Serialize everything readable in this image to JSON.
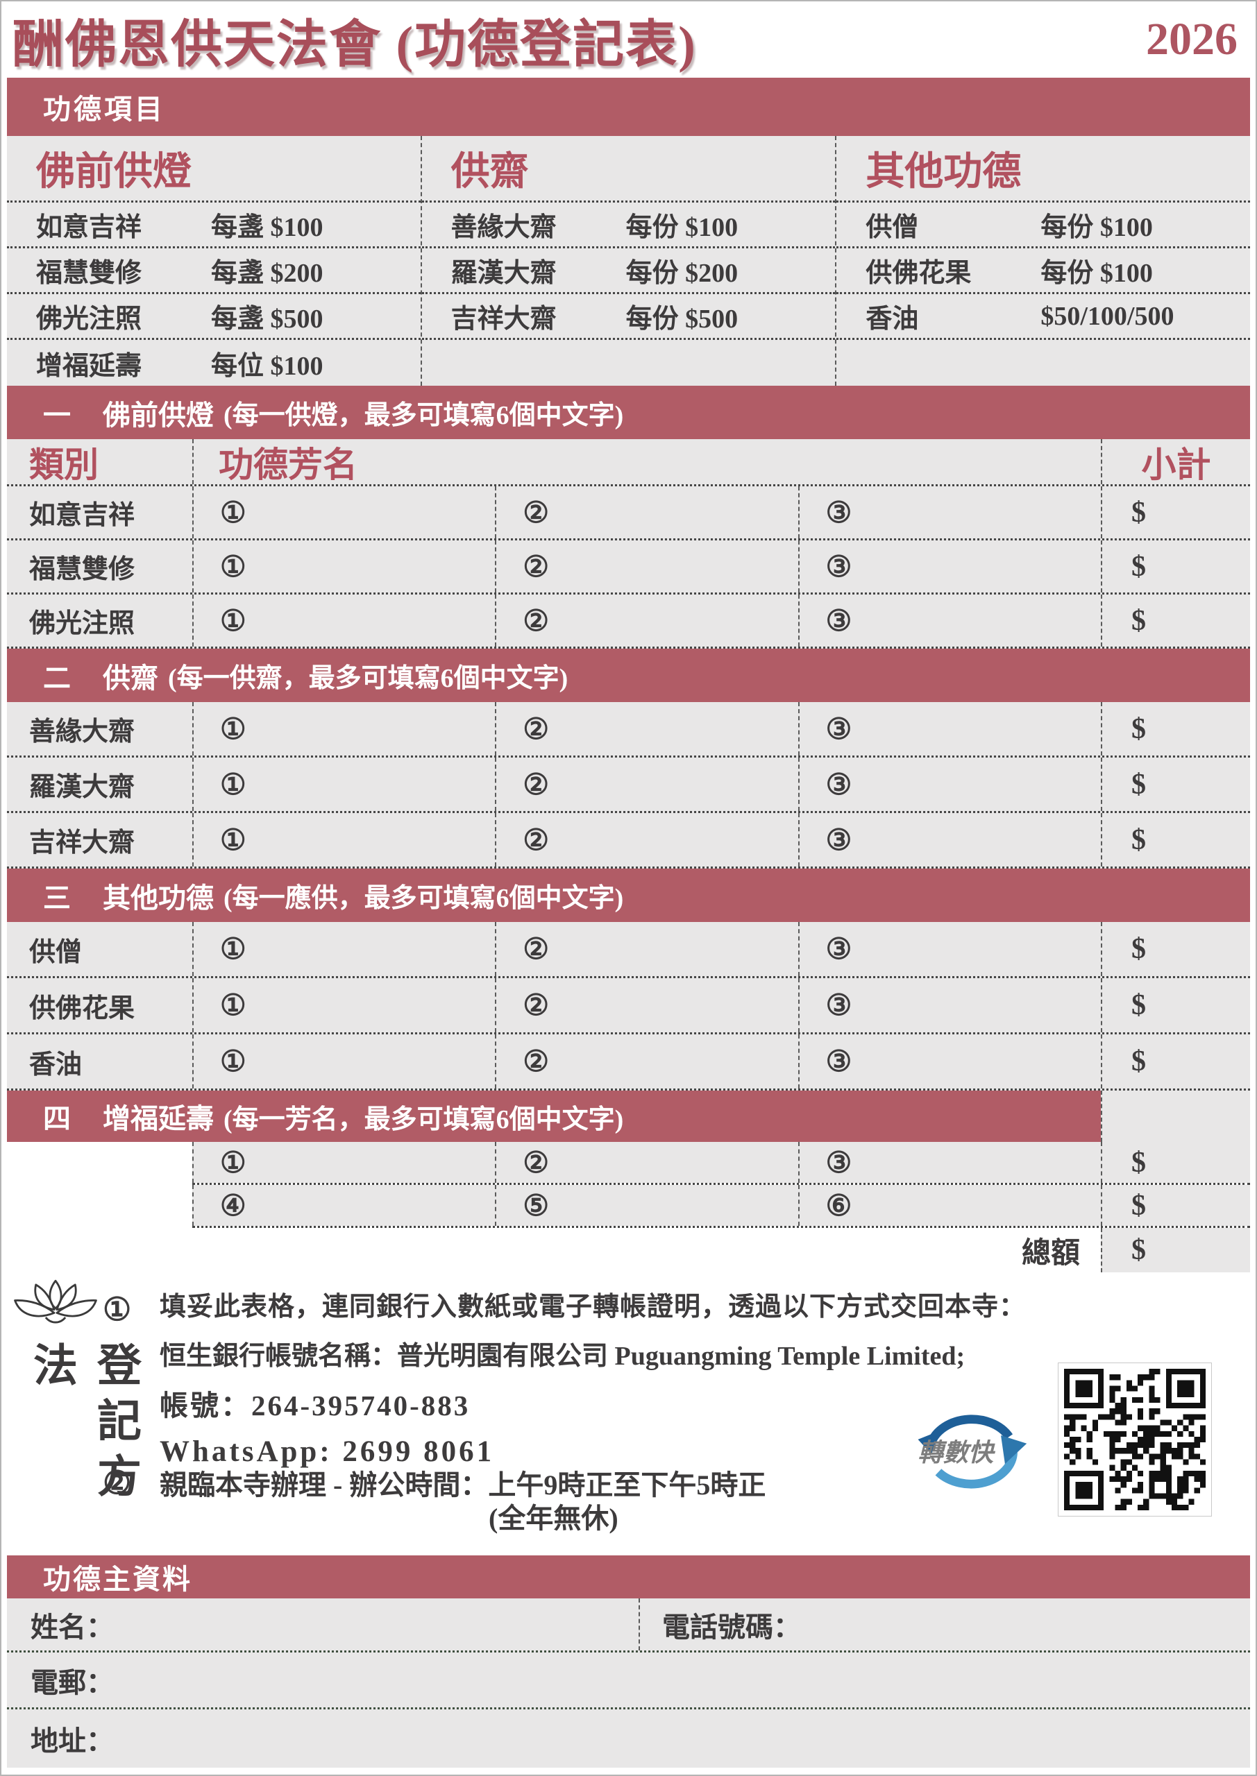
{
  "header": {
    "title": "酬佛恩供天法會 (功德登記表)",
    "year": "2026"
  },
  "colors": {
    "band_red": "#b15c66",
    "title_red": "#a84e5a",
    "accent_red": "#b1515f",
    "panel_gray": "#e8e7e7"
  },
  "merit_items": {
    "band_label": "功德項目",
    "columns": [
      {
        "title": "佛前供燈",
        "items": [
          {
            "name": "如意吉祥",
            "price": "每盞 $100"
          },
          {
            "name": "福慧雙修",
            "price": "每盞 $200"
          },
          {
            "name": "佛光注照",
            "price": "每盞 $500"
          },
          {
            "name": "增福延壽",
            "price": "每位 $100"
          }
        ]
      },
      {
        "title": "供齋",
        "items": [
          {
            "name": "善緣大齋",
            "price": "每份 $100"
          },
          {
            "name": "羅漢大齋",
            "price": "每份 $200"
          },
          {
            "name": "吉祥大齋",
            "price": "每份 $500"
          }
        ]
      },
      {
        "title": "其他功德",
        "items": [
          {
            "name": "供僧",
            "price": "每份 $100"
          },
          {
            "name": "供佛花果",
            "price": "每份 $100"
          },
          {
            "name": "香油",
            "price": "$50/100/500"
          }
        ]
      }
    ]
  },
  "table_header": {
    "category": "類別",
    "names": "功德芳名",
    "subtotal": "小計"
  },
  "sections": [
    {
      "num": "一",
      "title": "佛前供燈",
      "note": "(每一供燈，最多可填寫6個中文字)",
      "rows": [
        {
          "label": "如意吉祥",
          "c1": "①",
          "c2": "②",
          "c3": "③",
          "subtotal": "$"
        },
        {
          "label": "福慧雙修",
          "c1": "①",
          "c2": "②",
          "c3": "③",
          "subtotal": "$"
        },
        {
          "label": "佛光注照",
          "c1": "①",
          "c2": "②",
          "c3": "③",
          "subtotal": "$"
        }
      ]
    },
    {
      "num": "二",
      "title": "供齋",
      "note": "(每一供齋，最多可填寫6個中文字)",
      "rows": [
        {
          "label": "善緣大齋",
          "c1": "①",
          "c2": "②",
          "c3": "③",
          "subtotal": "$"
        },
        {
          "label": "羅漢大齋",
          "c1": "①",
          "c2": "②",
          "c3": "③",
          "subtotal": "$"
        },
        {
          "label": "吉祥大齋",
          "c1": "①",
          "c2": "②",
          "c3": "③",
          "subtotal": "$"
        }
      ]
    },
    {
      "num": "三",
      "title": "其他功德",
      "note": "(每一應供，最多可填寫6個中文字)",
      "rows": [
        {
          "label": "供僧",
          "c1": "①",
          "c2": "②",
          "c3": "③",
          "subtotal": "$"
        },
        {
          "label": "供佛花果",
          "c1": "①",
          "c2": "②",
          "c3": "③",
          "subtotal": "$"
        },
        {
          "label": "香油",
          "c1": "①",
          "c2": "②",
          "c3": "③",
          "subtotal": "$"
        }
      ]
    },
    {
      "num": "四",
      "title": "增福延壽",
      "note": "(每一芳名，最多可填寫6個中文字)",
      "rows": [
        {
          "label": "",
          "c1": "①",
          "c2": "②",
          "c3": "③",
          "subtotal": "$"
        },
        {
          "label": "",
          "c1": "④",
          "c2": "⑤",
          "c3": "⑥",
          "subtotal": "$"
        }
      ]
    }
  ],
  "total": {
    "label": "總額",
    "value": "$"
  },
  "registration": {
    "side_label": "登記方法",
    "methods": [
      {
        "num": "①",
        "lines": [
          "填妥此表格，連同銀行入數紙或電子轉帳證明，透過以下方式交回本寺：",
          "恒生銀行帳號名稱：普光明園有限公司 Puguangming Temple Limited;",
          "帳號：264-395740-883",
          "WhatsApp: 2699 8061"
        ]
      },
      {
        "num": "②",
        "lines": [
          "親臨本寺辦理 - 辦公時間：上午9時正至下午5時正",
          "(全年無休)"
        ]
      }
    ],
    "fps_label": "轉數快"
  },
  "donor": {
    "band_label": "功德主資料",
    "fields": {
      "name": "姓名：",
      "phone": "電話號碼：",
      "email": "電郵：",
      "address": "地址："
    }
  }
}
